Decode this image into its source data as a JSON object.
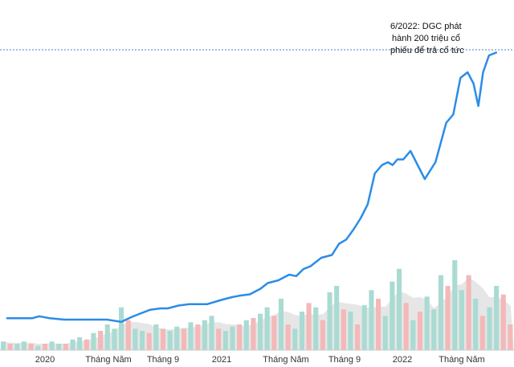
{
  "chart_data": {
    "type": "line",
    "title": "",
    "xlabel": "",
    "ylabel": "",
    "x_tick_labels": [
      "2020",
      "Tháng Năm",
      "Tháng 9",
      "2021",
      "Tháng Năm",
      "Tháng 9",
      "2022",
      "Tháng Năm"
    ],
    "x_tick_dates": [
      "2020-01",
      "2020-05",
      "2020-09",
      "2021-01",
      "2021-05",
      "2021-09",
      "2022-01",
      "2022-05"
    ],
    "x_range": [
      "2019-08",
      "2022-07"
    ],
    "y_range": [
      0,
      100
    ],
    "grid": false,
    "legend": "none",
    "colors": {
      "price_line": "#2b8ce8",
      "reference_line": "#4a7fd6",
      "volume_up": "#a9dbd3",
      "volume_down": "#f4b8b8",
      "volume_avg_area": "#e6e6e6"
    },
    "annotation": {
      "lines": [
        "6/2022: DGC phát",
        "hành 200 triệu cổ",
        "phiếu để trả cổ tức"
      ],
      "x": "2022-06",
      "y": 97
    },
    "reference_level": 96,
    "price_series": {
      "x": [
        "2019-08",
        "2019-09",
        "2019-10",
        "2019-10",
        "2019-11",
        "2019-12",
        "2020-01",
        "2020-02",
        "2020-03",
        "2020-04",
        "2020-05",
        "2020-05",
        "2020-06",
        "2020-07",
        "2020-07",
        "2020-08",
        "2020-09",
        "2020-09",
        "2020-10",
        "2020-11",
        "2020-12",
        "2020-12",
        "2021-01",
        "2021-02",
        "2021-02",
        "2021-03",
        "2021-04",
        "2021-04",
        "2021-05",
        "2021-05",
        "2021-06",
        "2021-07",
        "2021-07",
        "2021-08",
        "2021-08",
        "2021-09",
        "2021-09",
        "2021-10",
        "2021-10",
        "2021-11",
        "2021-11",
        "2021-11",
        "2021-12",
        "2021-12",
        "2022-01",
        "2022-01",
        "2022-02",
        "2022-03",
        "2022-03",
        "2022-04",
        "2022-04",
        "2022-05",
        "2022-05",
        "2022-05",
        "2022-06",
        "2022-06"
      ],
      "y": [
        0.5,
        0.5,
        0.5,
        1.2,
        0.5,
        0,
        0,
        0,
        0,
        -0.8,
        1,
        2,
        3.5,
        4,
        4,
        5,
        5.5,
        5.5,
        5.5,
        7,
        8,
        8.5,
        9,
        11,
        13,
        14,
        16,
        15.5,
        18,
        19,
        22,
        23,
        27,
        28.5,
        32,
        36,
        41,
        52,
        55,
        56,
        55,
        57,
        57,
        60,
        55,
        50,
        56,
        70,
        73,
        86,
        88,
        84,
        76,
        88,
        94,
        95
      ]
    },
    "volume_series": {
      "values": [
        4,
        3,
        3,
        4,
        3,
        2,
        3,
        4,
        3,
        3,
        5,
        6,
        5,
        8,
        9,
        12,
        10,
        20,
        14,
        10,
        9,
        8,
        12,
        10,
        9,
        11,
        10,
        13,
        12,
        14,
        16,
        10,
        9,
        11,
        12,
        14,
        15,
        17,
        20,
        16,
        24,
        12,
        10,
        18,
        22,
        20,
        14,
        27,
        30,
        19,
        18,
        12,
        21,
        28,
        24,
        16,
        32,
        38,
        22,
        14,
        18,
        25,
        19,
        35,
        30,
        42,
        28,
        35,
        24,
        16,
        20,
        30,
        26,
        12
      ],
      "direction": [
        "u",
        "d",
        "u",
        "u",
        "d",
        "u",
        "d",
        "u",
        "u",
        "d",
        "u",
        "u",
        "d",
        "u",
        "d",
        "u",
        "u",
        "u",
        "d",
        "u",
        "u",
        "d",
        "u",
        "d",
        "u",
        "u",
        "d",
        "u",
        "d",
        "u",
        "u",
        "d",
        "u",
        "u",
        "d",
        "u",
        "d",
        "u",
        "u",
        "d",
        "u",
        "d",
        "u",
        "u",
        "d",
        "u",
        "d",
        "u",
        "u",
        "d",
        "u",
        "d",
        "u",
        "u",
        "d",
        "u",
        "u",
        "u",
        "d",
        "u",
        "d",
        "u",
        "u",
        "u",
        "d",
        "u",
        "u",
        "d",
        "u",
        "d",
        "u",
        "u",
        "d",
        "d"
      ]
    }
  }
}
